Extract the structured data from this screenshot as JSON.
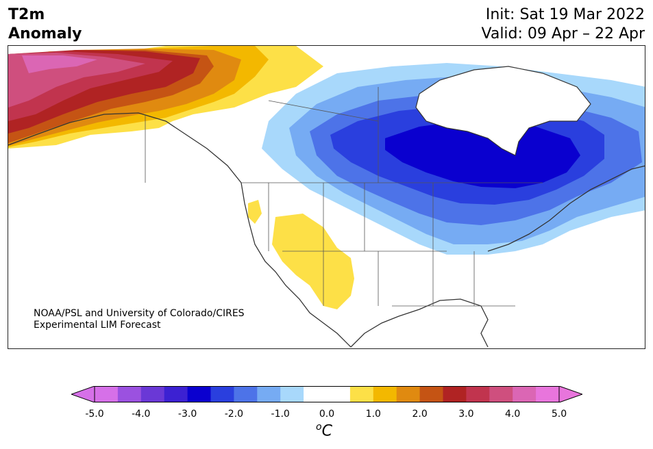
{
  "header": {
    "title_line1": "T2m",
    "title_line2": "Anomaly",
    "init": "Init: Sat 19 Mar 2022",
    "valid": "Valid: 09 Apr – 22 Apr"
  },
  "credit": {
    "line1": "NOAA/PSL and University of Colorado/CIRES",
    "line2": "Experimental LIM Forecast"
  },
  "colorbar": {
    "ticks": [
      "-5.0",
      "-4.0",
      "-3.0",
      "-2.0",
      "-1.0",
      "0.0",
      "1.0",
      "2.0",
      "3.0",
      "4.0",
      "5.0"
    ],
    "unit_base": "C",
    "unit_sup": "o",
    "under_color": "#d670e8",
    "over_color": "#e875dc",
    "colors": [
      "#d670e8",
      "#9b51e0",
      "#6a38d6",
      "#3c21d2",
      "#0a00cf",
      "#2a3fde",
      "#4d73e8",
      "#76abf3",
      "#a8d8fb",
      "#ffffff",
      "#ffffff",
      "#fde047",
      "#f3b800",
      "#e08a10",
      "#c55414",
      "#b02323",
      "#c1344e",
      "#cf4f7e",
      "#db66b4",
      "#e875dc"
    ]
  },
  "map": {
    "region": "North America",
    "variable": "2 m temperature anomaly"
  }
}
